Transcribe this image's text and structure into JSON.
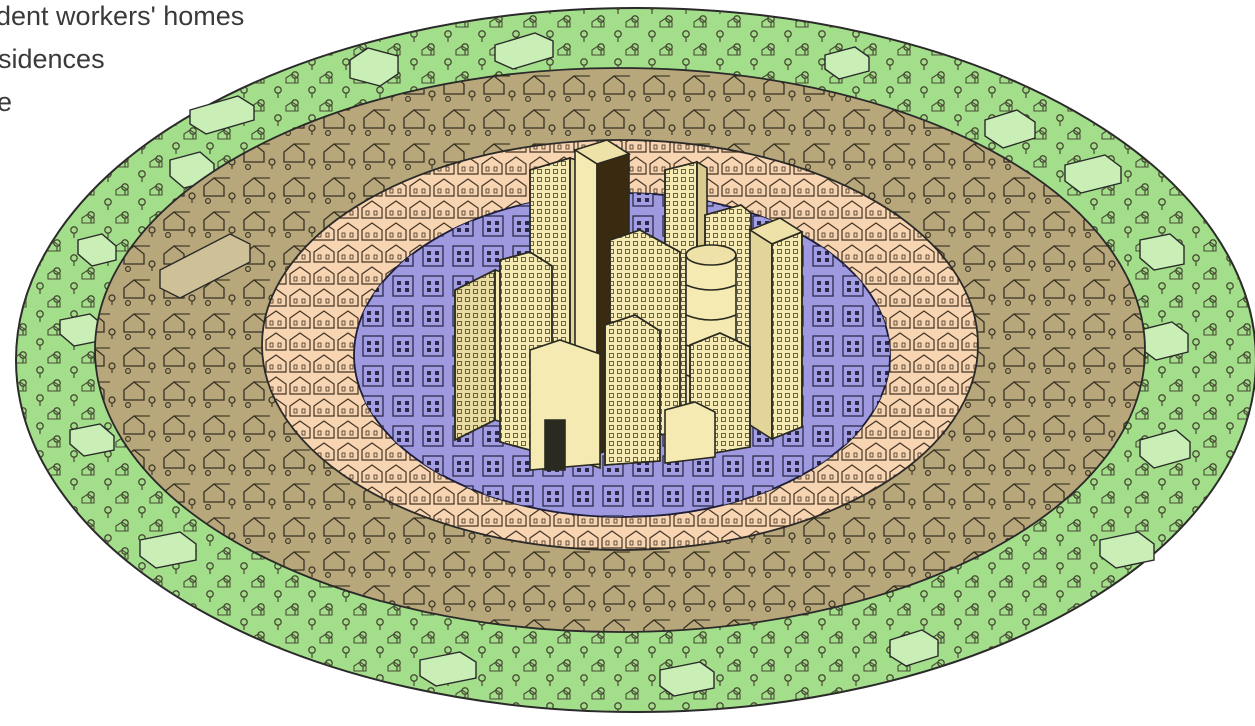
{
  "legend": {
    "items": [
      {
        "text": "dent workers' homes"
      },
      {
        "text": "sidences"
      },
      {
        "text": "e"
      }
    ]
  },
  "zones": [
    {
      "id": "commuter-zone",
      "color": "#a3df8b"
    },
    {
      "id": "residential-zone",
      "color": "#b7a77a"
    },
    {
      "id": "working-class-zone",
      "color": "#f7d4b2"
    },
    {
      "id": "transition-zone",
      "color": "#9f9ae0"
    },
    {
      "id": "central-business-district",
      "color": "#f6eab3"
    }
  ],
  "colors": {
    "outline": "#2a2a2a",
    "tree": "#3e3a2b"
  }
}
